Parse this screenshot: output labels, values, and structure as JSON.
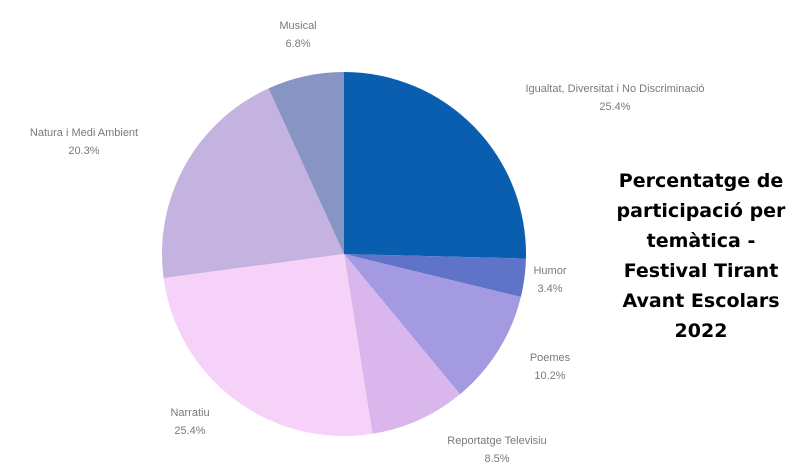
{
  "chart_data": {
    "type": "pie",
    "title_lines": [
      "Percentatge de",
      "participació per",
      "temàtica -",
      "Festival Tirant",
      "Avant Escolars",
      "2022"
    ],
    "slices": [
      {
        "label": "Igualtat, Diversitat i No Discriminació",
        "value_label": "25.4%",
        "value": 25.4,
        "color": "#0a5eb0"
      },
      {
        "label": "Humor",
        "value_label": "3.4%",
        "value": 3.4,
        "color": "#5f74c8"
      },
      {
        "label": "Poemes",
        "value_label": "10.2%",
        "value": 10.2,
        "color": "#a49ae2"
      },
      {
        "label": "Reportatge Televisiu",
        "value_label": "8.5%",
        "value": 8.5,
        "color": "#d9b6ec"
      },
      {
        "label": "Narratiu",
        "value_label": "25.4%",
        "value": 25.4,
        "color": "#f7d2f8"
      },
      {
        "label": "Natura i Medi Ambient",
        "value_label": "20.3%",
        "value": 20.3,
        "color": "#c4b2e0"
      },
      {
        "label": "Musical",
        "value_label": "6.8%",
        "value": 6.8,
        "color": "#8794c4"
      }
    ],
    "start": "12 o'clock",
    "direction": "clockwise",
    "legend": "none"
  }
}
